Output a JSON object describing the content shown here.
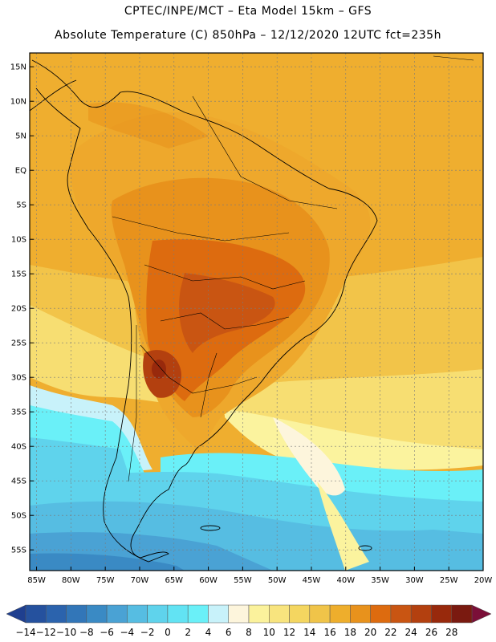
{
  "header": {
    "line1": "CPTEC/INPE/MCT –  Eta Model 15km – GFS",
    "line2": "Absolute Temperature (C) 850hPa – 12/12/2020 12UTC fct=235h"
  },
  "map": {
    "lat_labels": [
      "15N",
      "10N",
      "5N",
      "EQ",
      "5S",
      "10S",
      "15S",
      "20S",
      "25S",
      "30S",
      "35S",
      "40S",
      "45S",
      "50S",
      "55S"
    ],
    "lon_labels": [
      "85W",
      "80W",
      "75W",
      "70W",
      "65W",
      "60W",
      "55W",
      "50W",
      "45W",
      "40W",
      "35W",
      "30W",
      "25W",
      "20W"
    ],
    "lat_range": [
      17,
      -58
    ],
    "lon_range": [
      -86,
      -20
    ]
  },
  "colorbar": {
    "labels": [
      "-14",
      "-12",
      "-10",
      "-8",
      "-6",
      "-4",
      "-2",
      "0",
      "2",
      "4",
      "6",
      "8",
      "10",
      "12",
      "14",
      "16",
      "18",
      "20",
      "22",
      "24",
      "26",
      "28"
    ],
    "colors": [
      "#1f3f8f",
      "#25519e",
      "#2b63ad",
      "#3276b8",
      "#3a8ac4",
      "#4aa2d4",
      "#56bde2",
      "#5fd3ec",
      "#62e3f3",
      "#6af0f8",
      "#c8f2fa",
      "#fdf5dc",
      "#fbf29c",
      "#f8e47e",
      "#f4d660",
      "#f0c449",
      "#eeae2c",
      "#e8921c",
      "#dd6b0f",
      "#c95512",
      "#b3400f",
      "#98290c",
      "#7a1a10",
      "#7b0f38"
    ]
  }
}
